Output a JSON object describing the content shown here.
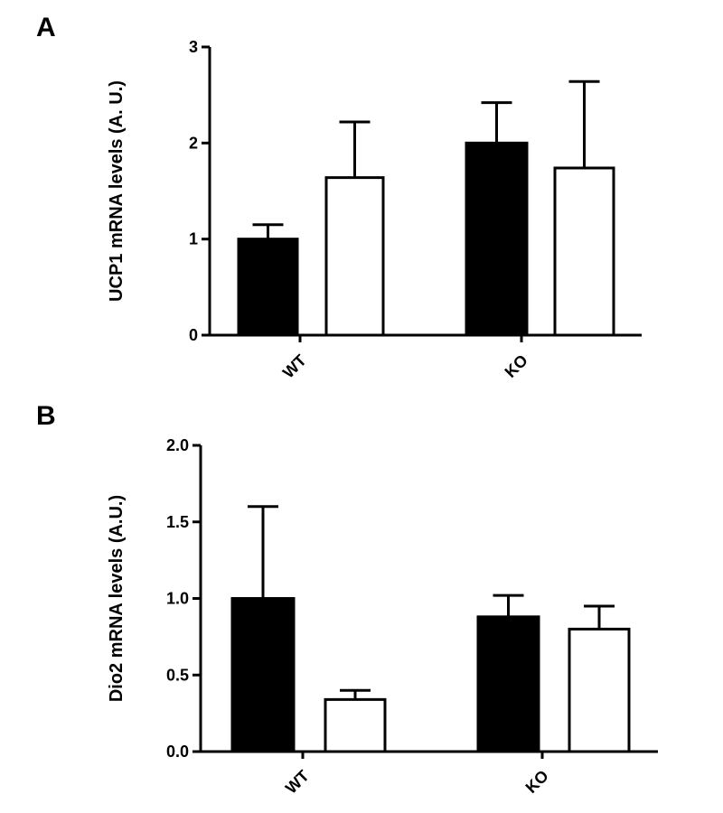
{
  "chart_data": [
    {
      "panel": "A",
      "type": "bar",
      "ylabel": "UCP1 mRNA levels (A. U.)",
      "ylim": [
        0,
        3
      ],
      "yticks": [
        "0",
        "1",
        "2",
        "3"
      ],
      "categories": [
        "WT",
        "KO"
      ],
      "series": [
        {
          "fill": "#000000",
          "values": [
            1.0,
            2.0
          ],
          "errors": [
            0.15,
            0.42
          ]
        },
        {
          "fill": "#ffffff",
          "values": [
            1.64,
            1.74
          ],
          "errors": [
            0.58,
            0.9
          ]
        }
      ]
    },
    {
      "panel": "B",
      "type": "bar",
      "ylabel": "Dio2 mRNA levels (A.U.)",
      "ylim": [
        0,
        2.0
      ],
      "yticks": [
        "0.0",
        "0.5",
        "1.0",
        "1.5",
        "2.0"
      ],
      "categories": [
        "WT",
        "KO"
      ],
      "series": [
        {
          "fill": "#000000",
          "values": [
            1.0,
            0.88
          ],
          "errors": [
            0.6,
            0.14
          ]
        },
        {
          "fill": "#ffffff",
          "values": [
            0.34,
            0.8
          ],
          "errors": [
            0.06,
            0.15
          ]
        }
      ]
    }
  ]
}
